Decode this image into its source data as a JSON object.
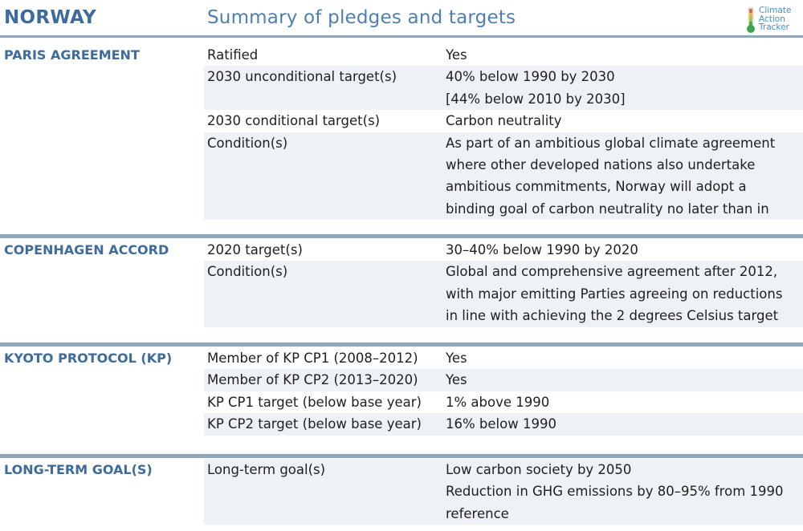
{
  "header": {
    "country": "NORWAY",
    "subtitle": "Summary of pledges and targets",
    "logo": [
      "Climate",
      "Action",
      "Tracker"
    ]
  },
  "sections": [
    {
      "title": "PARIS AGREEMENT",
      "rows": [
        {
          "label": "Ratified",
          "value": [
            "Yes"
          ]
        },
        {
          "label": "2030 unconditional target(s)",
          "value": [
            "40% below 1990 by 2030",
            "[44% below 2010 by 2030]"
          ]
        },
        {
          "label": "2030 conditional target(s)",
          "value": [
            "Carbon neutrality"
          ]
        },
        {
          "label": "Condition(s)",
          "value": [
            "As part of an ambitious global climate agreement",
            "where other developed nations also undertake",
            "ambitious commitments, Norway will adopt a",
            "binding goal of carbon neutrality no later than in"
          ]
        }
      ]
    },
    {
      "title": "COPENHAGEN ACCORD",
      "rows": [
        {
          "label": "2020 target(s)",
          "value": [
            "30–40% below 1990 by 2020"
          ]
        },
        {
          "label": "Condition(s)",
          "value": [
            "Global and comprehensive agreement after 2012,",
            "with major emitting Parties agreeing on reductions",
            "in line with achieving the 2 degrees Celsius target"
          ]
        }
      ]
    },
    {
      "title": "KYOTO PROTOCOL (KP)",
      "rows": [
        {
          "label": "Member of KP CP1 (2008–2012)",
          "value": [
            "Yes"
          ]
        },
        {
          "label": "Member of KP CP2 (2013–2020)",
          "value": [
            "Yes"
          ]
        },
        {
          "label": "KP CP1 target (below base year)",
          "value": [
            "1% above 1990"
          ]
        },
        {
          "label": "KP CP2 target (below base year)",
          "value": [
            "16% below 1990"
          ]
        }
      ]
    },
    {
      "title": "LONG-TERM GOAL(S)",
      "rows": [
        {
          "label": "Long-term goal(s)",
          "value": [
            "Low carbon society by 2050",
            "Reduction in GHG emissions by 80–95% from 1990",
            "reference"
          ]
        }
      ]
    }
  ],
  "colors": {
    "accent": "#3e6b9e",
    "rule": "#8fa6bf",
    "shade": "#eef2f6"
  }
}
